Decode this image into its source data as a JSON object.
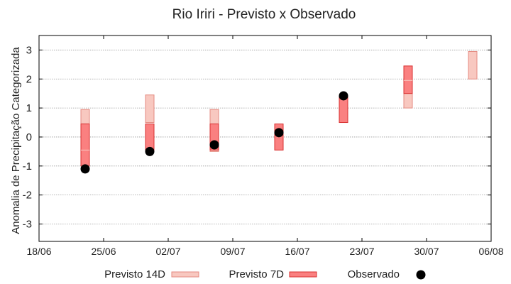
{
  "chart_data": {
    "type": "floating-bar-with-points",
    "title": "Rio Iriri - Previsto x Observado",
    "ylabel": "Anomalia de Precipitação Categorizada",
    "xlabel": "",
    "ylim": [
      -3.6,
      3.5
    ],
    "yticks": [
      -3,
      -2,
      -1,
      0,
      1,
      2,
      3
    ],
    "xlim_days": [
      "18/06",
      "06/08"
    ],
    "xticks": [
      "18/06",
      "25/06",
      "02/07",
      "09/07",
      "16/07",
      "23/07",
      "30/07",
      "06/08"
    ],
    "grid": true,
    "legend_position": "bottom",
    "colors": {
      "forecast14": "#f8c8c0",
      "forecast14_stroke": "#e48a80",
      "forecast7": "#fa8080",
      "forecast7_stroke": "#d83030",
      "observed": "#000000",
      "grid": "#999999"
    },
    "series": [
      {
        "name": "Previsto 14D",
        "dates": [
          "23/06",
          "30/06",
          "07/07",
          "14/07",
          "21/07",
          "28/07",
          "04/08"
        ],
        "low": [
          -1.0,
          0.5,
          -0.5,
          null,
          null,
          1.0,
          2.0
        ],
        "high": [
          0.95,
          1.45,
          0.95,
          null,
          null,
          2.0,
          2.95
        ]
      },
      {
        "name": "Previsto 7D",
        "dates": [
          "23/06",
          "30/06",
          "07/07",
          "14/07",
          "21/07",
          "28/07"
        ],
        "low": [
          -1.0,
          -0.45,
          -0.45,
          -0.45,
          0.5,
          1.5
        ],
        "high": [
          0.45,
          0.45,
          0.45,
          0.45,
          1.4,
          2.45
        ],
        "mid": [
          -0.45,
          null,
          null,
          null,
          null,
          1.95
        ]
      },
      {
        "name": "Observado",
        "dates": [
          "23/06",
          "30/06",
          "07/07",
          "14/07",
          "21/07"
        ],
        "values": [
          -1.1,
          -0.5,
          -0.27,
          0.15,
          1.42
        ]
      }
    ]
  }
}
